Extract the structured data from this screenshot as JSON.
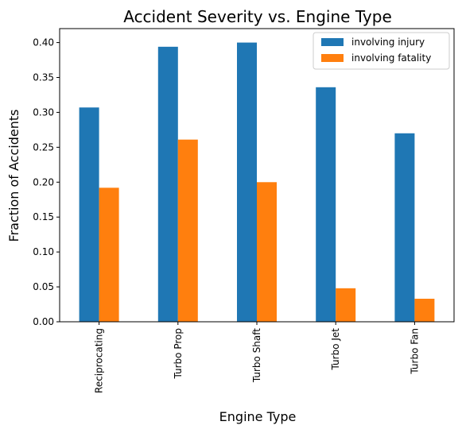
{
  "chart_data": {
    "type": "bar",
    "title": "Accident Severity vs. Engine Type",
    "xlabel": "Engine Type",
    "ylabel": "Fraction of Accidents",
    "categories": [
      "Reciprocating",
      "Turbo Prop",
      "Turbo Shaft",
      "Turbo Jet",
      "Turbo Fan"
    ],
    "series": [
      {
        "name": "involving injury",
        "color": "#1f77b4",
        "values": [
          0.307,
          0.394,
          0.4,
          0.336,
          0.27
        ]
      },
      {
        "name": "involving fatality",
        "color": "#ff7f0e",
        "values": [
          0.192,
          0.261,
          0.2,
          0.048,
          0.033
        ]
      }
    ],
    "ylim": [
      0,
      0.42
    ],
    "yticks": [
      0.0,
      0.05,
      0.1,
      0.15,
      0.2,
      0.25,
      0.3,
      0.35,
      0.4
    ],
    "ytick_labels": [
      "0.00",
      "0.05",
      "0.10",
      "0.15",
      "0.20",
      "0.25",
      "0.30",
      "0.35",
      "0.40"
    ],
    "grid": false,
    "legend_position": "top-right"
  }
}
